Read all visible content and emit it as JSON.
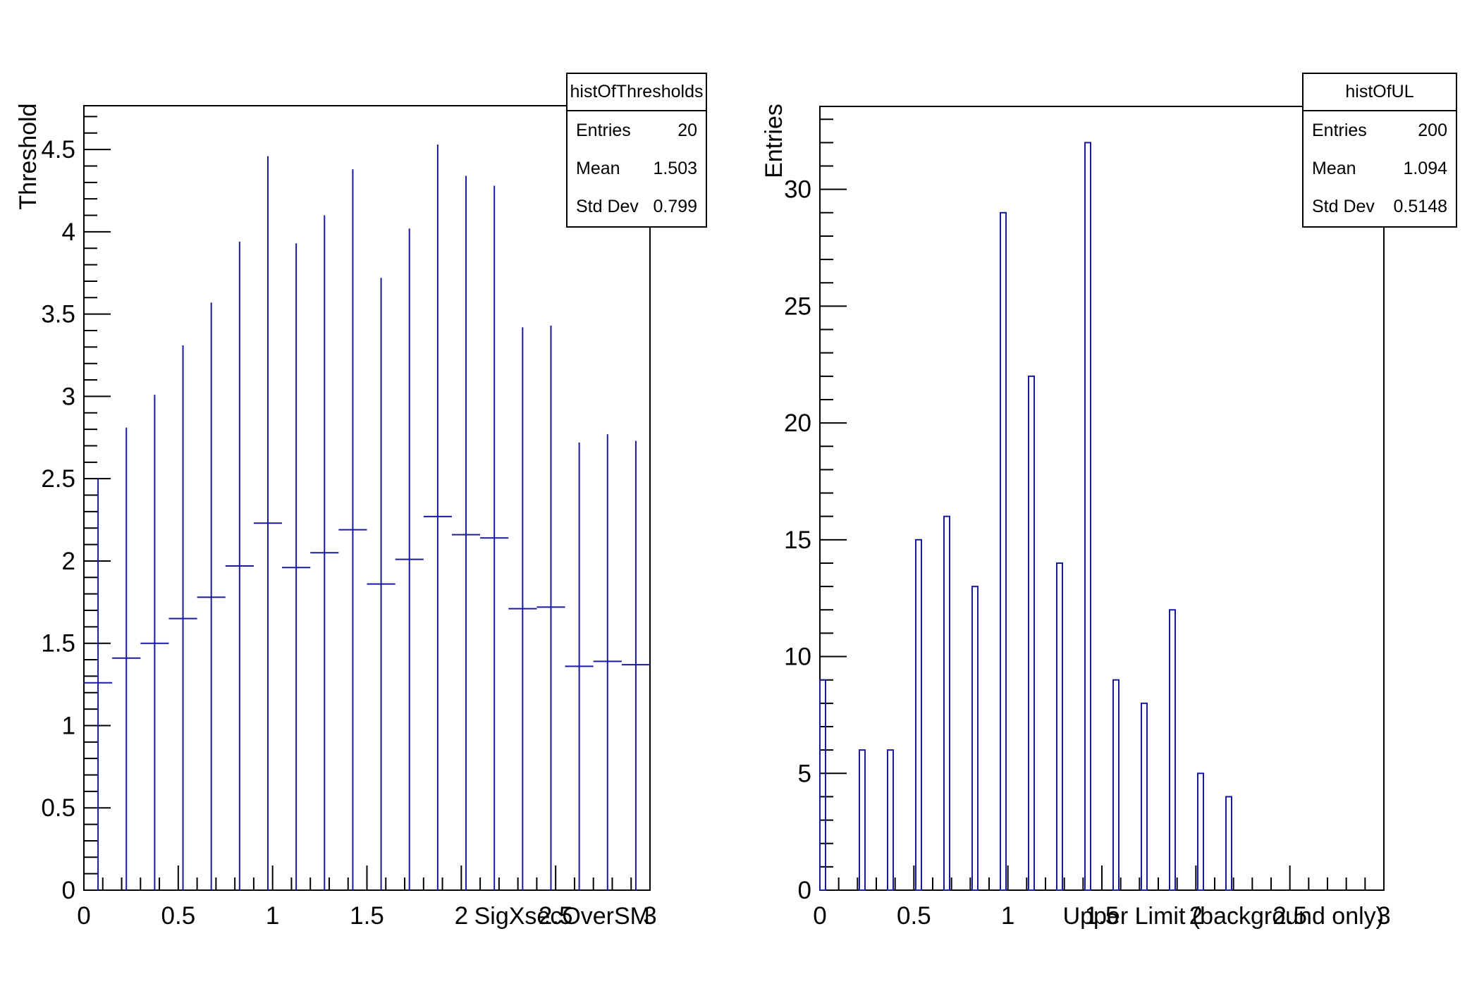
{
  "canvas": {
    "background": "#ffffff",
    "frame_color": "#000000",
    "hist_line_color": "#1a1aa0"
  },
  "chart_data": [
    {
      "type": "errorbar",
      "name": "histOfThresholds",
      "xlabel": "SigXsecOverSM",
      "ylabel": "Threshold",
      "xlim": [
        0,
        3
      ],
      "ylim": [
        0,
        4.766
      ],
      "grid": false,
      "bin_width": 0.15,
      "x_ticks": {
        "major_step": 0.5,
        "minor_step": 0.1,
        "labels": [
          "0",
          "0.5",
          "1",
          "1.5",
          "2",
          "2.5",
          "3"
        ]
      },
      "y_ticks": {
        "major_step": 0.5,
        "minor_step": 0.1,
        "labels": [
          "0",
          "0.5",
          "1",
          "1.5",
          "2",
          "2.5",
          "3",
          "3.5",
          "4",
          "4.5"
        ]
      },
      "points": [
        {
          "x": 0.075,
          "y": 1.26,
          "ylow": 0,
          "yhigh": 2.5
        },
        {
          "x": 0.225,
          "y": 1.41,
          "ylow": 0,
          "yhigh": 2.81
        },
        {
          "x": 0.375,
          "y": 1.5,
          "ylow": 0,
          "yhigh": 3.01
        },
        {
          "x": 0.525,
          "y": 1.65,
          "ylow": 0,
          "yhigh": 3.31
        },
        {
          "x": 0.675,
          "y": 1.78,
          "ylow": 0,
          "yhigh": 3.57
        },
        {
          "x": 0.825,
          "y": 1.97,
          "ylow": 0,
          "yhigh": 3.94
        },
        {
          "x": 0.975,
          "y": 2.23,
          "ylow": 0,
          "yhigh": 4.46
        },
        {
          "x": 1.125,
          "y": 1.96,
          "ylow": 0,
          "yhigh": 3.93
        },
        {
          "x": 1.275,
          "y": 2.05,
          "ylow": 0,
          "yhigh": 4.1
        },
        {
          "x": 1.425,
          "y": 2.19,
          "ylow": 0,
          "yhigh": 4.38
        },
        {
          "x": 1.575,
          "y": 1.86,
          "ylow": 0,
          "yhigh": 3.72
        },
        {
          "x": 1.725,
          "y": 2.01,
          "ylow": 0,
          "yhigh": 4.02
        },
        {
          "x": 1.875,
          "y": 2.27,
          "ylow": 0,
          "yhigh": 4.53
        },
        {
          "x": 2.025,
          "y": 2.16,
          "ylow": 0,
          "yhigh": 4.34
        },
        {
          "x": 2.175,
          "y": 2.14,
          "ylow": 0,
          "yhigh": 4.28
        },
        {
          "x": 2.325,
          "y": 1.71,
          "ylow": 0,
          "yhigh": 3.42
        },
        {
          "x": 2.475,
          "y": 1.72,
          "ylow": 0,
          "yhigh": 3.43
        },
        {
          "x": 2.625,
          "y": 1.36,
          "ylow": 0,
          "yhigh": 2.72
        },
        {
          "x": 2.775,
          "y": 1.39,
          "ylow": 0,
          "yhigh": 2.77
        },
        {
          "x": 2.925,
          "y": 1.37,
          "ylow": 0,
          "yhigh": 2.73
        }
      ],
      "stats": {
        "title": "histOfThresholds",
        "entries_label": "Entries",
        "entries": "20",
        "mean_label": "Mean",
        "mean": "1.503",
        "std_label": "Std Dev",
        "std": "0.799"
      }
    },
    {
      "type": "bar",
      "name": "histOfUL",
      "xlabel": "Upper Limit (background only)",
      "ylabel": "Entries",
      "xlim": [
        0,
        3
      ],
      "ylim": [
        0,
        33.55
      ],
      "grid": false,
      "bin_width": 0.03,
      "x_ticks": {
        "major_step": 0.5,
        "minor_step": 0.1,
        "labels": [
          "0",
          "0.5",
          "1",
          "1.5",
          "2",
          "2.5",
          "3"
        ]
      },
      "y_ticks": {
        "major_step": 5,
        "minor_step": 1,
        "labels": [
          "0",
          "5",
          "10",
          "15",
          "20",
          "25",
          "30"
        ]
      },
      "bars": [
        {
          "x": 0.015,
          "count": 9
        },
        {
          "x": 0.225,
          "count": 6
        },
        {
          "x": 0.375,
          "count": 6
        },
        {
          "x": 0.525,
          "count": 15
        },
        {
          "x": 0.675,
          "count": 16
        },
        {
          "x": 0.825,
          "count": 13
        },
        {
          "x": 0.975,
          "count": 29
        },
        {
          "x": 1.125,
          "count": 22
        },
        {
          "x": 1.275,
          "count": 14
        },
        {
          "x": 1.425,
          "count": 32
        },
        {
          "x": 1.575,
          "count": 9
        },
        {
          "x": 1.725,
          "count": 8
        },
        {
          "x": 1.875,
          "count": 12
        },
        {
          "x": 2.025,
          "count": 5
        },
        {
          "x": 2.175,
          "count": 4
        }
      ],
      "stats": {
        "title": "histOfUL",
        "entries_label": "Entries",
        "entries": "200",
        "mean_label": "Mean",
        "mean": "1.094",
        "std_label": "Std Dev",
        "std": "0.5148"
      }
    }
  ]
}
